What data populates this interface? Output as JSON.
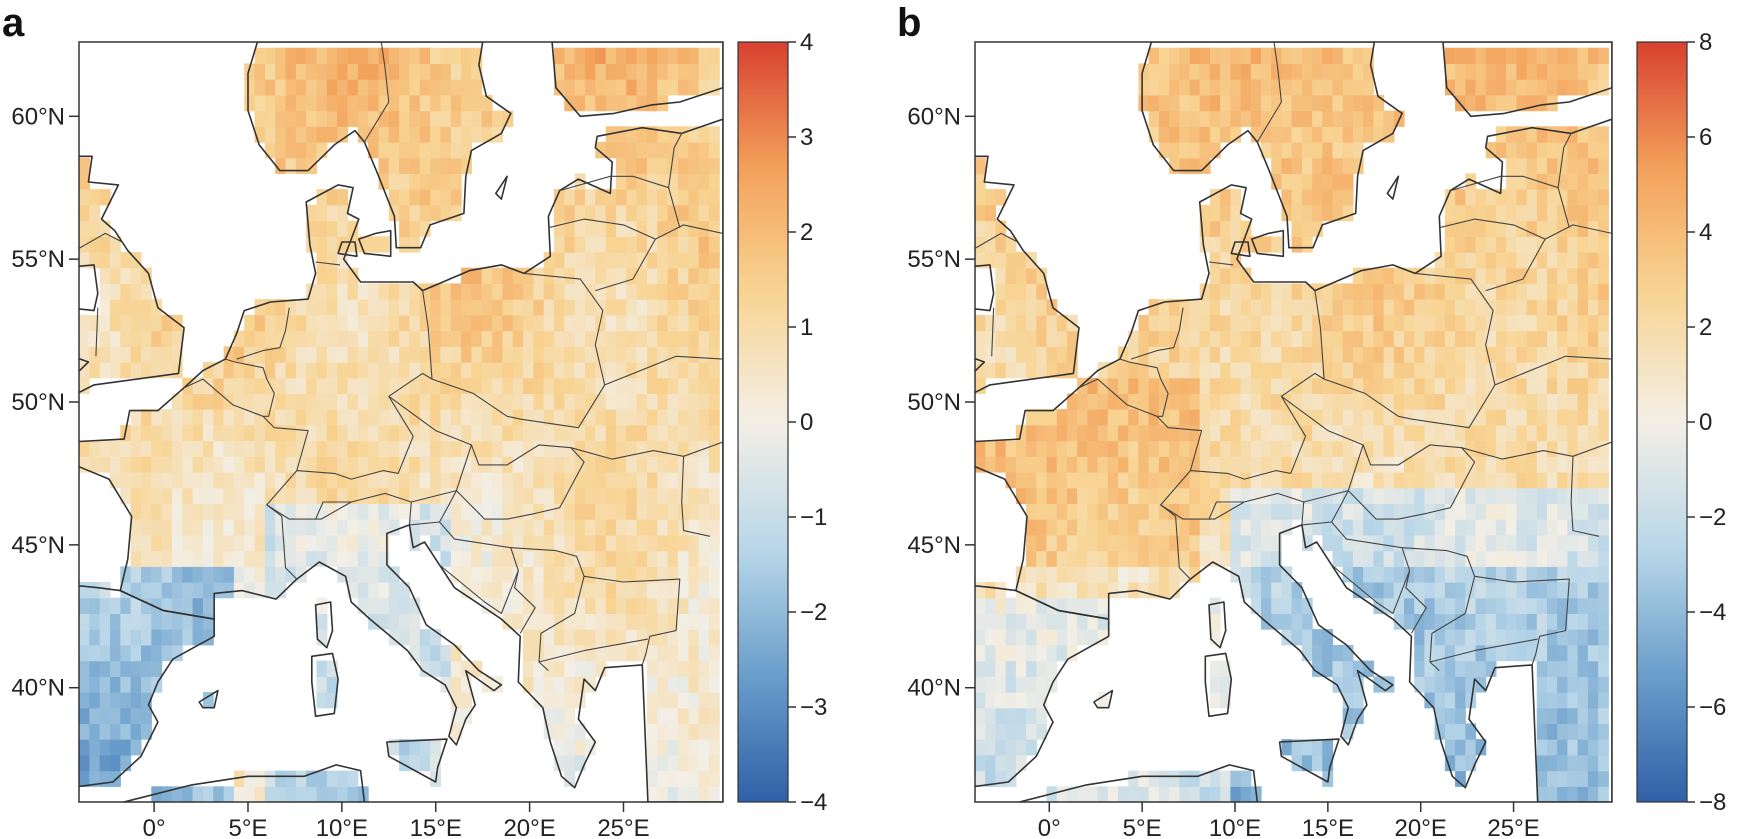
{
  "panels": [
    {
      "id": "a",
      "label": "a",
      "colorbar": {
        "min": -4,
        "max": 4,
        "ticks": [
          "4",
          "3",
          "2",
          "1",
          "0",
          "−1",
          "−2",
          "−3",
          "−4"
        ]
      },
      "field_seed": 11,
      "field_bias": 1.4
    },
    {
      "id": "b",
      "label": "b",
      "colorbar": {
        "min": -8,
        "max": 8,
        "ticks": [
          "8",
          "6",
          "4",
          "2",
          "0",
          "−2",
          "−4",
          "−6",
          "−8"
        ]
      },
      "field_seed": 29,
      "field_bias": 3.0
    }
  ],
  "lat_labels": [
    "60°N",
    "55°N",
    "50°N",
    "45°N",
    "40°N"
  ],
  "lon_labels": [
    "0°",
    "5°E",
    "10°E",
    "15°E",
    "20°E",
    "25°E"
  ],
  "colormap": [
    "#3060a8",
    "#6b9fcb",
    "#b8d6e8",
    "#f3efe6",
    "#f8d493",
    "#f3a35c",
    "#d8412f"
  ]
}
